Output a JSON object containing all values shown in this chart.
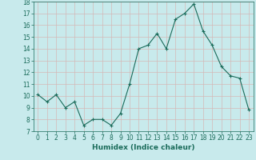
{
  "title": "",
  "xlabel": "Humidex (Indice chaleur)",
  "ylabel": "",
  "x": [
    0,
    1,
    2,
    3,
    4,
    5,
    6,
    7,
    8,
    9,
    10,
    11,
    12,
    13,
    14,
    15,
    16,
    17,
    18,
    19,
    20,
    21,
    22,
    23
  ],
  "y": [
    10.1,
    9.5,
    10.1,
    9.0,
    9.5,
    7.5,
    8.0,
    8.0,
    7.5,
    8.5,
    11.0,
    14.0,
    14.3,
    15.3,
    14.0,
    16.5,
    17.0,
    17.8,
    15.5,
    14.3,
    12.5,
    11.7,
    11.5,
    8.8
  ],
  "ylim": [
    7,
    18
  ],
  "yticks": [
    7,
    8,
    9,
    10,
    11,
    12,
    13,
    14,
    15,
    16,
    17,
    18
  ],
  "xticks": [
    0,
    1,
    2,
    3,
    4,
    5,
    6,
    7,
    8,
    9,
    10,
    11,
    12,
    13,
    14,
    15,
    16,
    17,
    18,
    19,
    20,
    21,
    22,
    23
  ],
  "line_color": "#1a6b5a",
  "marker": "+",
  "bg_color": "#c8eaec",
  "grid_color": "#b0d8da",
  "tick_label_color": "#1a6b5a",
  "xlabel_color": "#1a6b5a"
}
